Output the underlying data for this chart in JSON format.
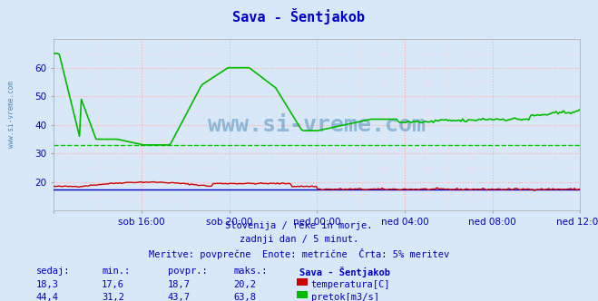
{
  "title": "Sava - Šentjakob",
  "bg_color": "#d8e8f8",
  "plot_bg_color": "#d8e8f8",
  "grid_color_major": "#ffaaaa",
  "grid_color_minor": "#ffdddd",
  "x_labels": [
    "sob 16:00",
    "sob 20:00",
    "ned 00:00",
    "ned 04:00",
    "ned 08:00",
    "ned 12:00"
  ],
  "ylim": [
    10,
    70
  ],
  "yticks": [
    20,
    30,
    40,
    50,
    60
  ],
  "avg_line_color": "#00cc00",
  "avg_line_value": 33,
  "temp_color": "#cc0000",
  "flow_color": "#00bb00",
  "blue_line_color": "#0000cc",
  "subtitle1": "Slovenija / reke in morje.",
  "subtitle2": "zadnji dan / 5 minut.",
  "subtitle3": "Meritve: povprečne  Enote: metrične  Črta: 5% meritev",
  "table_header": [
    "sedaj:",
    "min.:",
    "povpr.:",
    "maks.:",
    "Sava - Šentjakob"
  ],
  "row1": [
    "18,3",
    "17,6",
    "18,7",
    "20,2",
    "temperatura[C]"
  ],
  "row2": [
    "44,4",
    "31,2",
    "43,7",
    "63,8",
    "pretok[m3/s]"
  ],
  "watermark": "www.si-vreme.com",
  "left_label": "www.si-vreme.com",
  "title_color": "#0000cc",
  "subtitle_color": "#0000bb",
  "table_color": "#0000cc",
  "watermark_color": "#4488bb"
}
